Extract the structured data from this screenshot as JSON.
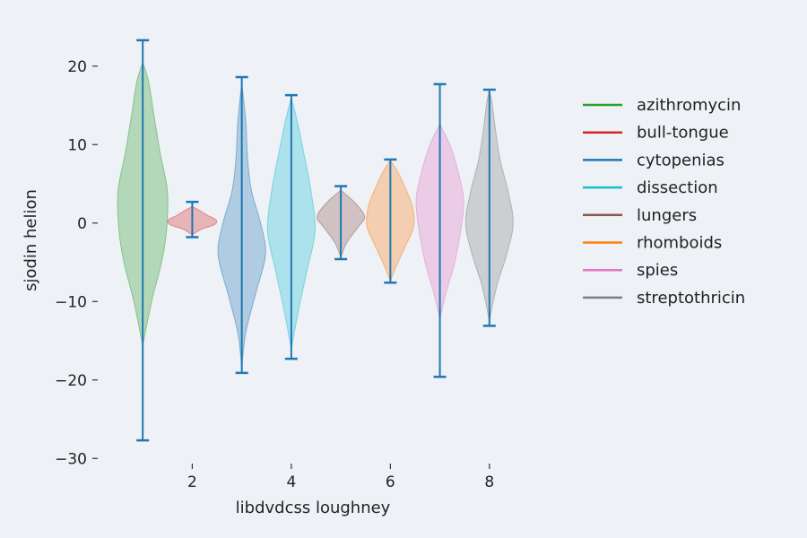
{
  "chart_data": {
    "type": "violin",
    "xlabel": "libdvdcss loughney",
    "ylabel": "sjodin helion",
    "x_ticks": [
      2,
      4,
      6,
      8
    ],
    "y_ticks": [
      -30,
      -20,
      -10,
      0,
      10,
      20
    ],
    "xlim": [
      0.2,
      8.8
    ],
    "ylim": [
      -31,
      25
    ],
    "grid": false,
    "legend_position": "right",
    "series": [
      {
        "name": "azithromycin",
        "x": 1,
        "min": -27.7,
        "max": 23.3,
        "color": "#2ca02c",
        "profile": [
          [
            -15.6,
            0.0
          ],
          [
            -10,
            0.18
          ],
          [
            -5,
            0.38
          ],
          [
            -1,
            0.48
          ],
          [
            4,
            0.5
          ],
          [
            9,
            0.35
          ],
          [
            14,
            0.22
          ],
          [
            18,
            0.12
          ],
          [
            20.5,
            0.0
          ]
        ]
      },
      {
        "name": "bull-tongue",
        "x": 2,
        "min": -1.8,
        "max": 2.7,
        "color": "#d62728",
        "profile": [
          [
            -1.5,
            0.0
          ],
          [
            -0.8,
            0.18
          ],
          [
            -0.2,
            0.45
          ],
          [
            0.4,
            0.48
          ],
          [
            1.0,
            0.3
          ],
          [
            1.6,
            0.15
          ],
          [
            2.1,
            0.0
          ]
        ]
      },
      {
        "name": "cytopenias",
        "x": 3,
        "min": -19.1,
        "max": 18.6,
        "color": "#1f77b4",
        "profile": [
          [
            -18.5,
            0.0
          ],
          [
            -14,
            0.08
          ],
          [
            -9,
            0.28
          ],
          [
            -4,
            0.48
          ],
          [
            0,
            0.38
          ],
          [
            4,
            0.2
          ],
          [
            8,
            0.12
          ],
          [
            13,
            0.08
          ],
          [
            17.8,
            0.0
          ]
        ]
      },
      {
        "name": "dissection",
        "x": 4,
        "min": -17.3,
        "max": 16.3,
        "color": "#17becf",
        "profile": [
          [
            -16,
            0.0
          ],
          [
            -11,
            0.15
          ],
          [
            -6,
            0.32
          ],
          [
            -1,
            0.48
          ],
          [
            4,
            0.4
          ],
          [
            9,
            0.25
          ],
          [
            13,
            0.12
          ],
          [
            16,
            0.0
          ]
        ]
      },
      {
        "name": "lungers",
        "x": 5,
        "min": -4.6,
        "max": 4.7,
        "color": "#8c564b",
        "profile": [
          [
            -4.4,
            0.0
          ],
          [
            -2.5,
            0.12
          ],
          [
            -0.5,
            0.35
          ],
          [
            0.8,
            0.48
          ],
          [
            2.5,
            0.3
          ],
          [
            4.2,
            0.0
          ]
        ]
      },
      {
        "name": "rhomboids",
        "x": 6,
        "min": -7.6,
        "max": 8.1,
        "color": "#ff7f0e",
        "profile": [
          [
            -7.4,
            0.0
          ],
          [
            -5.5,
            0.12
          ],
          [
            -3,
            0.3
          ],
          [
            -0.5,
            0.47
          ],
          [
            2,
            0.45
          ],
          [
            4.5,
            0.3
          ],
          [
            6.5,
            0.15
          ],
          [
            8,
            0.0
          ]
        ]
      },
      {
        "name": "spies",
        "x": 7,
        "min": -19.6,
        "max": 17.7,
        "color": "#e377c2",
        "profile": [
          [
            -12.2,
            0.0
          ],
          [
            -9,
            0.12
          ],
          [
            -5,
            0.3
          ],
          [
            -1,
            0.42
          ],
          [
            3,
            0.48
          ],
          [
            7,
            0.35
          ],
          [
            10,
            0.2
          ],
          [
            12.6,
            0.0
          ]
        ]
      },
      {
        "name": "streptothricin",
        "x": 8,
        "min": -13.1,
        "max": 17.0,
        "color": "#7f7f7f",
        "profile": [
          [
            -12.5,
            0.0
          ],
          [
            -8,
            0.15
          ],
          [
            -4,
            0.35
          ],
          [
            0,
            0.48
          ],
          [
            4,
            0.38
          ],
          [
            8,
            0.22
          ],
          [
            12,
            0.12
          ],
          [
            15.5,
            0.05
          ],
          [
            16.8,
            0.0
          ]
        ]
      }
    ],
    "whisker_color": "#1f77b4"
  }
}
